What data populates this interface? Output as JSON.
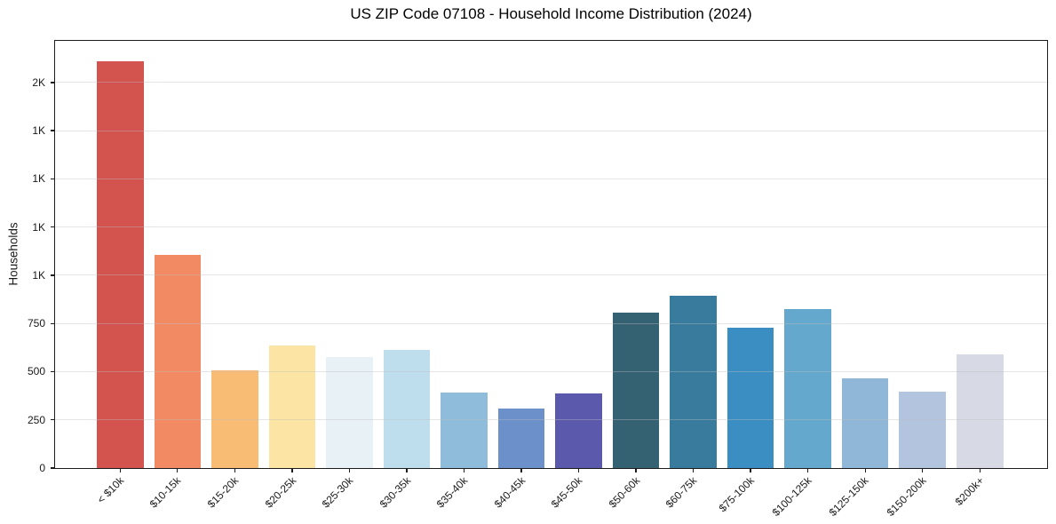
{
  "chart_data": {
    "type": "bar",
    "title": "US ZIP Code 07108 - Household Income Distribution (2024)",
    "xlabel": "",
    "ylabel": "Households",
    "categories": [
      "< $10k",
      "$10-15k",
      "$15-20k",
      "$20-25k",
      "$25-30k",
      "$30-35k",
      "$35-40k",
      "$40-45k",
      "$45-50k",
      "$50-60k",
      "$60-75k",
      "$75-100k",
      "$100-125k",
      "$125-150k",
      "$150-200k",
      "$200k+"
    ],
    "values": [
      2110,
      1105,
      505,
      635,
      577,
      612,
      390,
      310,
      387,
      805,
      895,
      730,
      825,
      465,
      398,
      588
    ],
    "bar_colors": [
      "#d3534e",
      "#f28a64",
      "#f9bc74",
      "#fce5a4",
      "#e7f1f6",
      "#bedded",
      "#90bcdc",
      "#6c90ca",
      "#5b59ac",
      "#356272",
      "#387b9c",
      "#3b8ec2",
      "#64a8ce",
      "#90b7d7",
      "#b3c4de",
      "#d7d9e5"
    ],
    "yticks": [
      {
        "value": 0,
        "label": "0"
      },
      {
        "value": 250,
        "label": "250"
      },
      {
        "value": 500,
        "label": "500"
      },
      {
        "value": 750,
        "label": "750"
      },
      {
        "value": 1000,
        "label": "1K"
      },
      {
        "value": 1250,
        "label": "1K"
      },
      {
        "value": 1500,
        "label": "1K"
      },
      {
        "value": 1750,
        "label": "1K"
      },
      {
        "value": 2000,
        "label": "2K"
      }
    ],
    "ylim": [
      0,
      2216
    ],
    "grid": true,
    "legend_position": "none",
    "colors": {
      "axis_line": "#1c1c1c",
      "grid_line": "#e9e9e9",
      "tick_text": "#1a1a1a",
      "title_text": "#000000",
      "background": "#ffffff"
    }
  }
}
